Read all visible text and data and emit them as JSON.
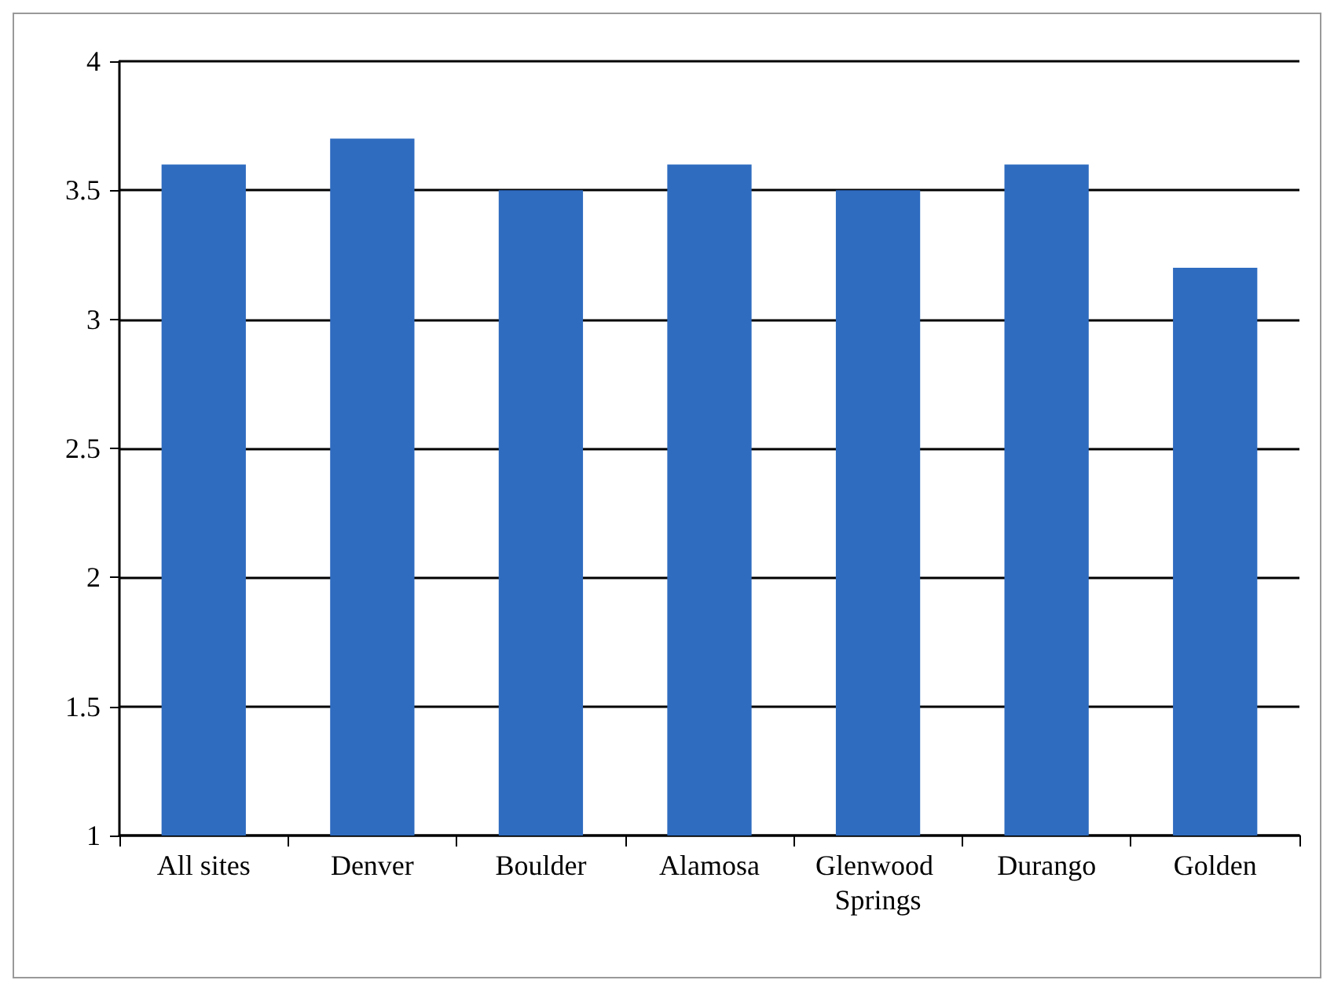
{
  "chart_data": {
    "type": "bar",
    "categories": [
      "All sites",
      "Denver",
      "Boulder",
      "Alamosa",
      "Glenwood Springs",
      "Durango",
      "Golden"
    ],
    "values": [
      3.6,
      3.7,
      3.5,
      3.6,
      3.5,
      3.6,
      3.2
    ],
    "color": "#2f6cc0",
    "ylim": [
      1,
      4
    ],
    "yticks": [
      1,
      1.5,
      2,
      2.5,
      3,
      3.5,
      4
    ],
    "grid": "y"
  }
}
